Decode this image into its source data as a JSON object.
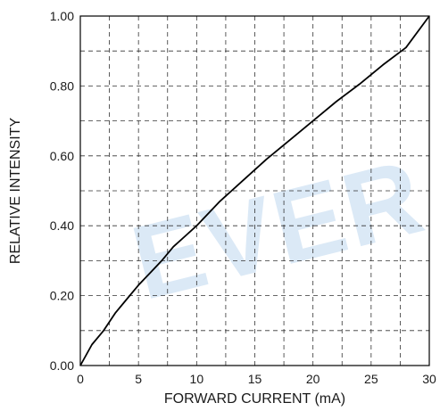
{
  "chart_data": {
    "type": "line",
    "xlabel": "FORWARD CURRENT (mA)",
    "ylabel": "RELATIVE INTENSITY",
    "xlim": [
      0,
      30
    ],
    "ylim": [
      0,
      1.0
    ],
    "x_ticks": [
      "0",
      "5",
      "10",
      "15",
      "20",
      "25",
      "30"
    ],
    "y_ticks": [
      "0.00",
      "0.20",
      "0.40",
      "0.60",
      "0.80",
      "1.00"
    ],
    "x_gridlines": [
      0,
      2.5,
      5,
      7.5,
      10,
      12.5,
      15,
      17.5,
      20,
      22.5,
      25,
      27.5,
      30
    ],
    "y_gridlines": [
      0.1,
      0.2,
      0.3,
      0.4,
      0.5,
      0.6,
      0.7,
      0.8,
      0.9,
      1.0
    ],
    "grid": true,
    "watermark": "EVER",
    "series": [
      {
        "x": [
          0,
          1,
          2,
          3,
          4,
          5,
          6,
          7,
          8,
          9,
          10,
          12,
          14,
          16,
          18,
          20,
          22,
          24,
          26,
          28,
          30
        ],
        "y": [
          0.0,
          0.06,
          0.1,
          0.15,
          0.19,
          0.23,
          0.265,
          0.3,
          0.34,
          0.37,
          0.4,
          0.47,
          0.53,
          0.59,
          0.645,
          0.7,
          0.755,
          0.805,
          0.86,
          0.91,
          1.0
        ]
      }
    ],
    "colors": {
      "curve": "#000000",
      "grid": "#333333",
      "watermark": "#dbe9f6"
    }
  }
}
